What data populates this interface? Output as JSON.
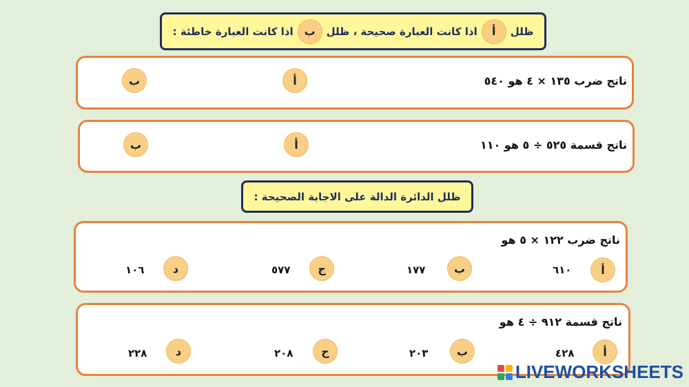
{
  "instructions1": {
    "before": "ظلل",
    "a": "أ",
    "middle": "اذا كانت العبارة صحيحة ، ظلل",
    "b": "ب",
    "after": "اذا كانت العبارة خاطئة :"
  },
  "tf": [
    {
      "text": "ناتج ضرب ١٣٥ × ٤ هو ٥٤٠",
      "a": "أ",
      "b": "ب"
    },
    {
      "text": "ناتج قسمة ٥٢٥ ÷ ٥ هو ١١٠",
      "a": "أ",
      "b": "ب"
    }
  ],
  "instructions2": "ظلل الدائرة الدالة على الاجابة الصحيحة :",
  "mc": [
    {
      "text": "ناتج ضرب ١٢٢ × ٥ هو",
      "options": [
        {
          "letter": "أ",
          "value": "٦١٠"
        },
        {
          "letter": "ب",
          "value": "١٧٧"
        },
        {
          "letter": "ج",
          "value": "٥٧٧"
        },
        {
          "letter": "د",
          "value": "١٠٦"
        }
      ]
    },
    {
      "text": "ناتج قسمة ٩١٢ ÷ ٤ هو",
      "options": [
        {
          "letter": "أ",
          "value": "٤٢٨"
        },
        {
          "letter": "ب",
          "value": "٢٠٣"
        },
        {
          "letter": "ج",
          "value": "٢٠٨"
        },
        {
          "letter": "د",
          "value": "٢٢٨"
        }
      ]
    }
  ],
  "logo": "LIVEWORKSHEETS",
  "colors": {
    "background": "#e3eedb",
    "box_border": "#e8823a",
    "header_fill": "#fff799",
    "header_border": "#1f2d5c",
    "circle": "#f9cf86"
  }
}
